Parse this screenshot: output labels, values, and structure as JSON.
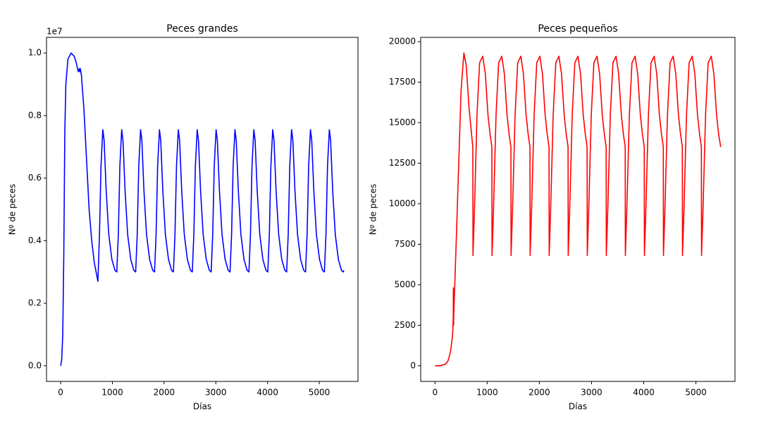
{
  "chart_data": [
    {
      "type": "line",
      "title": "Peces grandes",
      "x_label": "Días",
      "y_label": "Nº de peces",
      "y_offset_label": "1e7",
      "x": [
        0,
        20,
        40,
        60,
        80,
        100,
        140,
        200,
        260,
        300,
        340,
        360,
        370,
        380,
        400,
        450,
        500,
        550,
        600,
        650,
        720,
        750,
        780,
        815,
        840,
        880,
        930,
        990,
        1050,
        1085,
        1115,
        1145,
        1180,
        1205,
        1245,
        1295,
        1355,
        1415,
        1450,
        1480,
        1510,
        1545,
        1570,
        1610,
        1660,
        1720,
        1780,
        1815,
        1845,
        1875,
        1910,
        1935,
        1975,
        2025,
        2085,
        2145,
        2180,
        2210,
        2240,
        2275,
        2300,
        2340,
        2390,
        2450,
        2510,
        2545,
        2575,
        2605,
        2640,
        2665,
        2705,
        2755,
        2815,
        2875,
        2910,
        2940,
        2970,
        3005,
        3030,
        3070,
        3120,
        3180,
        3240,
        3275,
        3305,
        3335,
        3370,
        3395,
        3435,
        3485,
        3545,
        3605,
        3640,
        3670,
        3700,
        3735,
        3760,
        3800,
        3850,
        3910,
        3970,
        4005,
        4035,
        4065,
        4100,
        4125,
        4165,
        4215,
        4275,
        4335,
        4370,
        4400,
        4430,
        4465,
        4490,
        4530,
        4580,
        4640,
        4700,
        4735,
        4765,
        4795,
        4830,
        4855,
        4895,
        4945,
        5005,
        5065,
        5100,
        5130,
        5160,
        5195,
        5220,
        5260,
        5310,
        5370,
        5430,
        5465,
        5475
      ],
      "series": [
        {
          "color": "#0000ff",
          "values": [
            0,
            0.02,
            0.1,
            0.35,
            0.75,
            0.9,
            0.98,
            1.0,
            0.99,
            0.97,
            0.94,
            0.95,
            0.94,
            0.95,
            0.93,
            0.82,
            0.66,
            0.5,
            0.4,
            0.33,
            0.27,
            0.42,
            0.64,
            0.755,
            0.72,
            0.56,
            0.42,
            0.34,
            0.305,
            0.3,
            0.42,
            0.64,
            0.755,
            0.72,
            0.56,
            0.42,
            0.34,
            0.305,
            0.3,
            0.42,
            0.64,
            0.755,
            0.72,
            0.56,
            0.42,
            0.34,
            0.305,
            0.3,
            0.42,
            0.64,
            0.755,
            0.72,
            0.56,
            0.42,
            0.34,
            0.305,
            0.3,
            0.42,
            0.64,
            0.755,
            0.72,
            0.56,
            0.42,
            0.34,
            0.305,
            0.3,
            0.42,
            0.64,
            0.755,
            0.72,
            0.56,
            0.42,
            0.34,
            0.305,
            0.3,
            0.42,
            0.64,
            0.755,
            0.72,
            0.56,
            0.42,
            0.34,
            0.305,
            0.3,
            0.42,
            0.64,
            0.755,
            0.72,
            0.56,
            0.42,
            0.34,
            0.305,
            0.3,
            0.42,
            0.64,
            0.755,
            0.72,
            0.56,
            0.42,
            0.34,
            0.305,
            0.3,
            0.42,
            0.64,
            0.755,
            0.72,
            0.56,
            0.42,
            0.34,
            0.305,
            0.3,
            0.42,
            0.64,
            0.755,
            0.72,
            0.56,
            0.42,
            0.34,
            0.305,
            0.3,
            0.42,
            0.64,
            0.755,
            0.72,
            0.56,
            0.42,
            0.34,
            0.305,
            0.3,
            0.42,
            0.64,
            0.755,
            0.72,
            0.56,
            0.42,
            0.34,
            0.305,
            0.3,
            0.305
          ]
        }
      ],
      "xlim": [
        -274,
        5749
      ],
      "xticks": [
        0,
        1000,
        2000,
        3000,
        4000,
        5000
      ],
      "ylim": [
        -0.05,
        1.05
      ],
      "yticks": [
        {
          "value": 0,
          "label": "0.0"
        },
        0.2,
        0.4,
        0.6,
        0.8,
        {
          "value": 1,
          "label": "1.0"
        }
      ]
    },
    {
      "type": "line",
      "title": "Peces pequeños",
      "x_label": "Días",
      "y_label": "Nº de peces",
      "x": [
        0,
        100,
        200,
        250,
        300,
        340,
        350,
        352,
        356,
        360,
        400,
        450,
        500,
        554,
        600,
        650,
        700,
        725,
        728,
        755,
        805,
        855,
        915,
        965,
        1015,
        1055,
        1090,
        1093,
        1120,
        1170,
        1220,
        1280,
        1330,
        1380,
        1420,
        1455,
        1458,
        1485,
        1535,
        1585,
        1645,
        1695,
        1745,
        1785,
        1820,
        1823,
        1850,
        1900,
        1950,
        2010,
        2060,
        2110,
        2150,
        2185,
        2188,
        2215,
        2265,
        2315,
        2375,
        2425,
        2475,
        2515,
        2550,
        2553,
        2580,
        2630,
        2680,
        2740,
        2790,
        2840,
        2880,
        2915,
        2918,
        2945,
        2995,
        3045,
        3105,
        3155,
        3205,
        3245,
        3280,
        3283,
        3310,
        3360,
        3410,
        3470,
        3520,
        3570,
        3610,
        3645,
        3648,
        3675,
        3725,
        3775,
        3835,
        3885,
        3935,
        3975,
        4010,
        4013,
        4040,
        4090,
        4140,
        4200,
        4250,
        4300,
        4340,
        4375,
        4378,
        4405,
        4455,
        4505,
        4565,
        4615,
        4665,
        4705,
        4740,
        4743,
        4770,
        4820,
        4870,
        4930,
        4980,
        5030,
        5070,
        5105,
        5108,
        5135,
        5185,
        5235,
        5295,
        5345,
        5395,
        5435,
        5475
      ],
      "series": [
        {
          "color": "#ff0000",
          "values": [
            0,
            0,
            100,
            300,
            900,
            2000,
            3000,
            4800,
            2500,
            3200,
            7000,
            12000,
            17000,
            19300,
            18500,
            16000,
            14300,
            13500,
            6800,
            9500,
            15500,
            18700,
            19100,
            18000,
            15500,
            14300,
            13500,
            6800,
            9500,
            15500,
            18700,
            19100,
            18000,
            15500,
            14300,
            13500,
            6800,
            9500,
            15500,
            18700,
            19100,
            18000,
            15500,
            14300,
            13500,
            6800,
            9500,
            15500,
            18700,
            19100,
            18000,
            15500,
            14300,
            13500,
            6800,
            9500,
            15500,
            18700,
            19100,
            18000,
            15500,
            14300,
            13500,
            6800,
            9500,
            15500,
            18700,
            19100,
            18000,
            15500,
            14300,
            13500,
            6800,
            9500,
            15500,
            18700,
            19100,
            18000,
            15500,
            14300,
            13500,
            6800,
            9500,
            15500,
            18700,
            19100,
            18000,
            15500,
            14300,
            13500,
            6800,
            9500,
            15500,
            18700,
            19100,
            18000,
            15500,
            14300,
            13500,
            6800,
            9500,
            15500,
            18700,
            19100,
            18000,
            15500,
            14300,
            13500,
            6800,
            9500,
            15500,
            18700,
            19100,
            18000,
            15500,
            14300,
            13500,
            6800,
            9500,
            15500,
            18700,
            19100,
            18000,
            15500,
            14300,
            13500,
            6800,
            9500,
            15500,
            18700,
            19100,
            18000,
            15500,
            14300,
            13500
          ]
        }
      ],
      "xlim": [
        -274,
        5749
      ],
      "xticks": [
        0,
        1000,
        2000,
        3000,
        4000,
        5000
      ],
      "ylim": [
        -965,
        20265
      ],
      "yticks": [
        0,
        2500,
        5000,
        7500,
        10000,
        12500,
        15000,
        17500,
        20000
      ]
    }
  ]
}
